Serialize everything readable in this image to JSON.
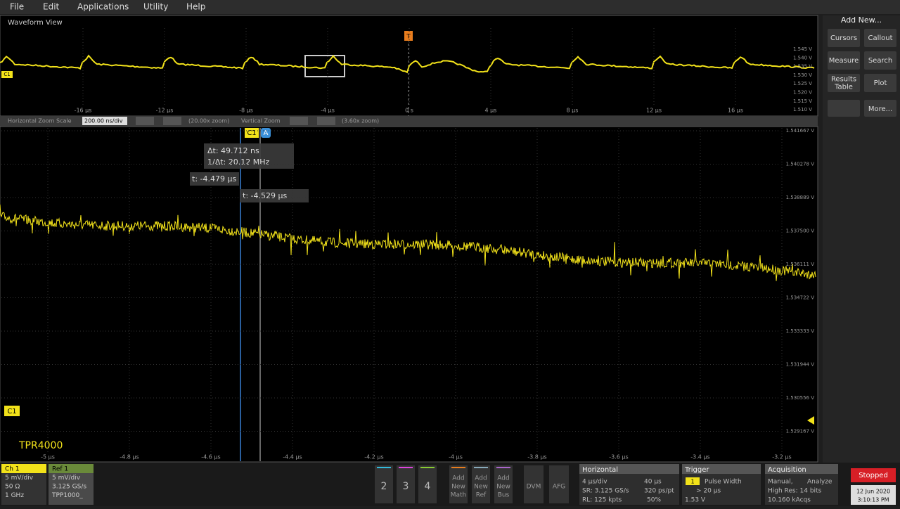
{
  "menu": [
    "File",
    "Edit",
    "Applications",
    "Utility",
    "Help"
  ],
  "overview": {
    "title": "Waveform View",
    "trigger_marker": "T",
    "channel_marker": "C1",
    "x_labels": [
      "-16 µs",
      "-12 µs",
      "-8 µs",
      "-4 µs",
      "0 s",
      "4 µs",
      "8 µs",
      "12 µs",
      "16 µs"
    ],
    "y_labels": [
      "1.545 V",
      "1.540 V",
      "1.535 V",
      "1.530 V",
      "1.525 V",
      "1.520 V",
      "1.515 V",
      "1.510 V"
    ]
  },
  "zoom_bar": {
    "h_label": "Horizontal Zoom Scale",
    "h_value": "200.00 ns/div",
    "h_zoom": "(20.00x zoom)",
    "v_label": "Vertical Zoom",
    "v_zoom": "(3.60x zoom)"
  },
  "main": {
    "channel_tag": "C1",
    "cursor_tag": "A",
    "channel_marker": "C1",
    "probe": "TPR4000",
    "readout": {
      "delta_t": "Δt: 49.712 ns",
      "inv_delta_t": "1/Δt: 20.12 MHz",
      "t_a": "t: -4.479 µs",
      "t_b": "t: -4.529 µs"
    },
    "x_labels": [
      "-5 µs",
      "-4.8 µs",
      "-4.6 µs",
      "-4.4 µs",
      "-4.2 µs",
      "-4 µs",
      "-3.8 µs",
      "-3.6 µs",
      "-3.4 µs",
      "-3.2 µs"
    ],
    "y_labels": [
      "1.541667 V",
      "1.540278 V",
      "1.538889 V",
      "1.537500 V",
      "1.536111 V",
      "1.534722 V",
      "1.533333 V",
      "1.531944 V",
      "1.530556 V",
      "1.529167 V"
    ]
  },
  "side_panel": {
    "title": "Add New...",
    "buttons": [
      [
        "Cursors"
      ],
      [
        "Callout"
      ],
      [
        "Measure"
      ],
      [
        "Search"
      ],
      [
        "Results",
        "Table"
      ],
      [
        "Plot"
      ],
      [
        "More..."
      ]
    ]
  },
  "bottom": {
    "ch1": [
      "Ch 1",
      "5 mV/div",
      "50 Ω",
      "1 GHz"
    ],
    "ref1": [
      "Ref 1",
      "5 mV/div",
      "3.125 GS/s",
      "TPP1000_"
    ],
    "channels": [
      "2",
      "3",
      "4"
    ],
    "add": [
      [
        "Add",
        "New",
        "Math"
      ],
      [
        "Add",
        "New",
        "Ref"
      ],
      [
        "Add",
        "New",
        "Bus"
      ]
    ],
    "tools": [
      "DVM",
      "AFG"
    ],
    "horizontal": {
      "title": "Horizontal",
      "scale": "4 µs/div",
      "span": "40 µs",
      "sr": "SR: 3.125 GS/s",
      "pt": "320 ps/pt",
      "rl": "RL: 125 kpts",
      "pos": "50%"
    },
    "trigger": {
      "title": "Trigger",
      "source": "1",
      "type": "Pulse Width",
      "cond": "> 20 µs",
      "level": "1.53 V"
    },
    "acquisition": {
      "title": "Acquisition",
      "mode": "Manual,",
      "analyze": "Analyze",
      "res": "High Res: 14 bits",
      "count": "10.160 kAcqs"
    },
    "status": "Stopped",
    "date": "12 Jun 2020",
    "time": "3:10:13 PM"
  }
}
